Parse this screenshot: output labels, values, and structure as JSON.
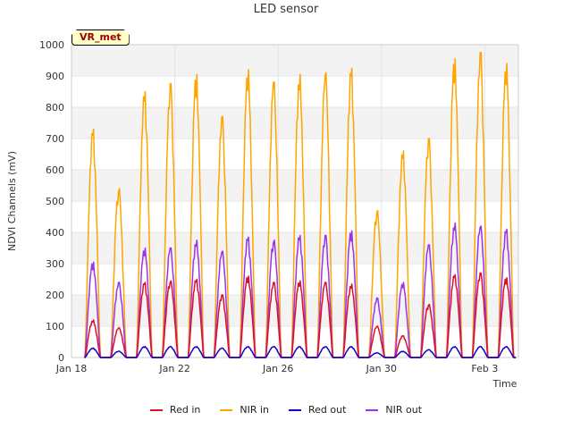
{
  "chart_data": {
    "type": "line",
    "title": "LED sensor",
    "xlabel": "Time",
    "ylabel": "NDVI Channels (mV)",
    "ylim": [
      0,
      1000
    ],
    "yticks": [
      0,
      100,
      200,
      300,
      400,
      500,
      600,
      700,
      800,
      900,
      1000
    ],
    "xlim_days": [
      0,
      17.3
    ],
    "xticks": [
      {
        "day": 0,
        "label": "Jan 18"
      },
      {
        "day": 4,
        "label": "Jan 22"
      },
      {
        "day": 8,
        "label": "Jan 26"
      },
      {
        "day": 12,
        "label": "Jan 30"
      },
      {
        "day": 16,
        "label": "Feb 3"
      }
    ],
    "daily_peaks": {
      "days": [
        1,
        2,
        3,
        4,
        5,
        6,
        7,
        8,
        9,
        10,
        11,
        12,
        13,
        14,
        15,
        16,
        17
      ],
      "Red in": [
        120,
        95,
        240,
        245,
        250,
        200,
        260,
        240,
        245,
        240,
        235,
        100,
        70,
        170,
        265,
        270,
        255
      ],
      "NIR in": [
        730,
        540,
        850,
        875,
        905,
        770,
        920,
        880,
        905,
        910,
        925,
        470,
        660,
        700,
        955,
        975,
        940
      ],
      "Red out": [
        30,
        20,
        35,
        35,
        35,
        30,
        35,
        35,
        35,
        35,
        35,
        15,
        20,
        25,
        35,
        35,
        35
      ],
      "NIR out": [
        305,
        240,
        350,
        350,
        375,
        340,
        385,
        375,
        390,
        390,
        405,
        190,
        240,
        360,
        430,
        420,
        410
      ]
    },
    "series": [
      {
        "name": "Red in",
        "color": "#dd1122"
      },
      {
        "name": "NIR in",
        "color": "#ffa500"
      },
      {
        "name": "Red out",
        "color": "#1100cc"
      },
      {
        "name": "NIR out",
        "color": "#9933ee"
      }
    ],
    "grid": true,
    "legend": "bottom",
    "annotation": "VR_met"
  }
}
